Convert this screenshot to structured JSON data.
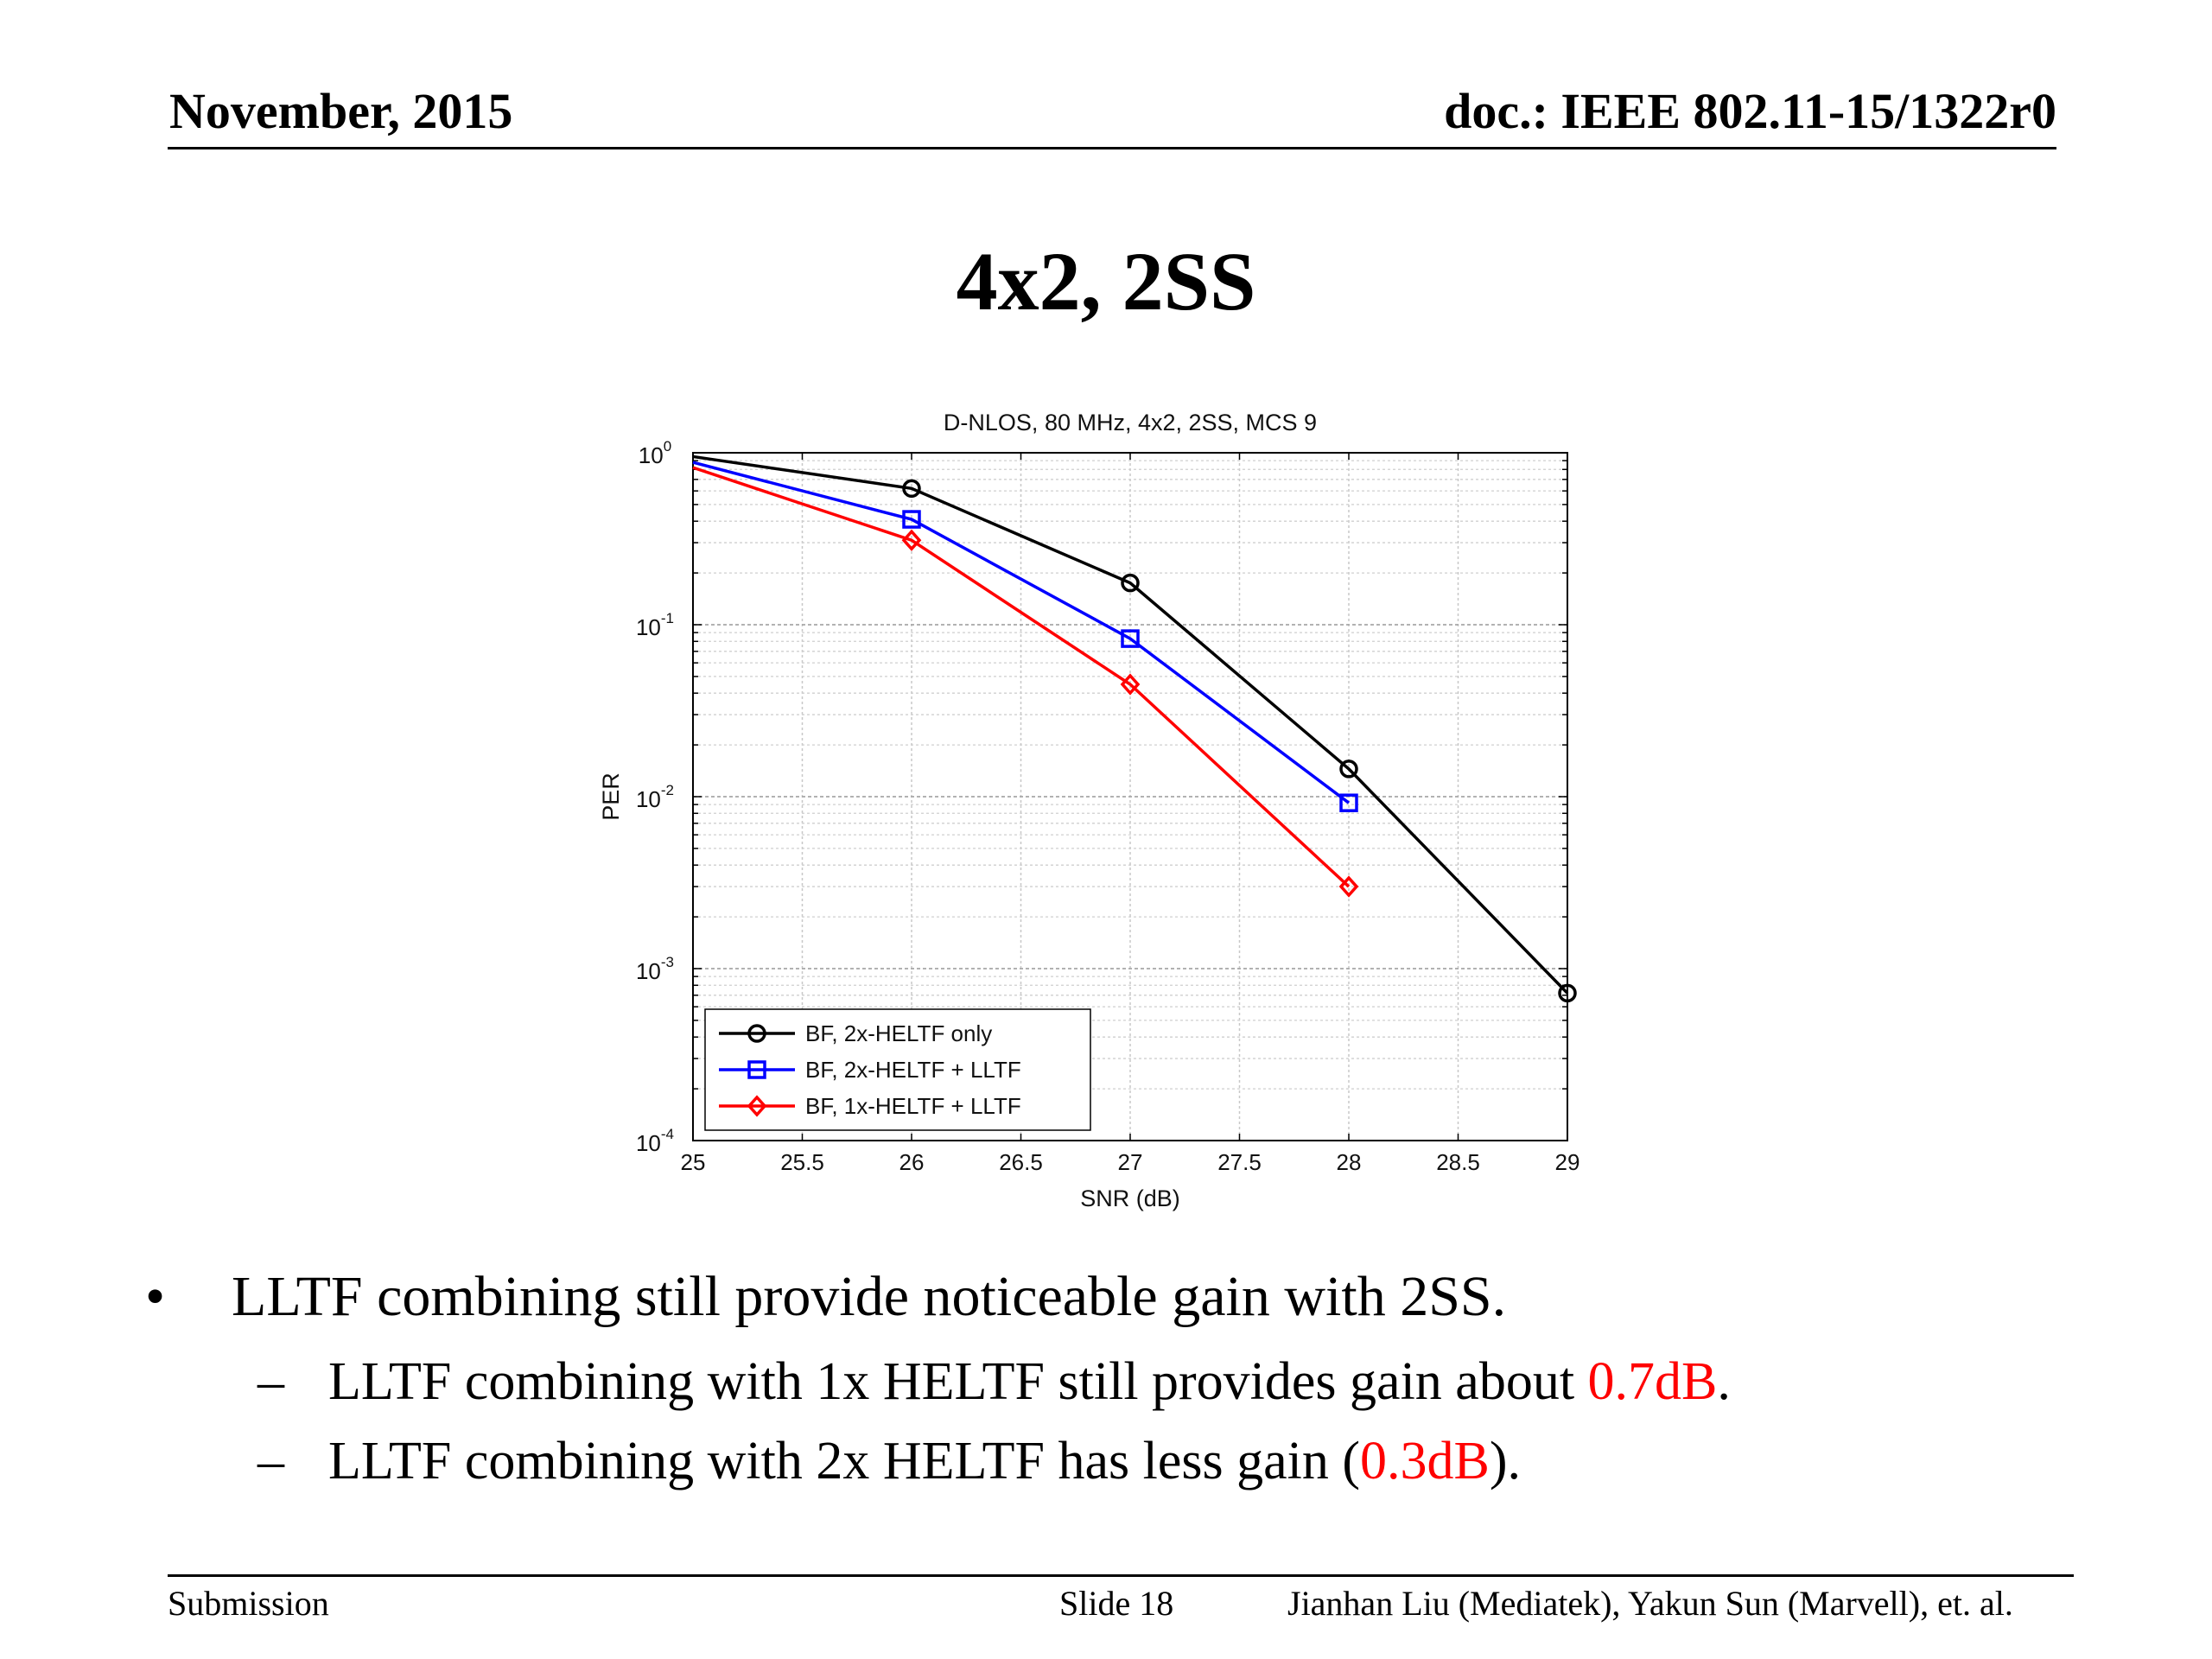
{
  "header": {
    "date": "November, 2015",
    "doc": "doc.: IEEE 802.11-15/1322r0"
  },
  "slide_title": "4x2, 2SS",
  "bullets": {
    "main": "LLTF combining still provide noticeable gain with 2SS.",
    "bullet_symbol": "•",
    "dash_symbol": "–",
    "sub1": {
      "before": "LLTF combining with 1x HELTF still provides gain about ",
      "highlight": "0.7dB",
      "after": "."
    },
    "sub2": {
      "before": "LLTF combining with 2x HELTF has less gain (",
      "highlight": "0.3dB",
      "after": ")."
    }
  },
  "footer": {
    "left": "Submission",
    "center": "Slide 18",
    "right": "Jianhan Liu (Mediatek), Yakun Sun (Marvell),  et. al."
  },
  "colors": {
    "highlight": "#ff0000"
  },
  "chart_data": {
    "type": "line",
    "title": "D-NLOS, 80 MHz, 4x2, 2SS, MCS 9",
    "xlabel": "SNR (dB)",
    "ylabel": "PER",
    "xlim": [
      25,
      29
    ],
    "ylim": [
      0.0001,
      1
    ],
    "yscale": "log",
    "xticks": [
      "25",
      "25.5",
      "26",
      "26.5",
      "27",
      "27.5",
      "28",
      "28.5",
      "29"
    ],
    "yticks": [
      {
        "base": "10",
        "exp": "0"
      },
      {
        "base": "10",
        "exp": "-1"
      },
      {
        "base": "10",
        "exp": "-2"
      },
      {
        "base": "10",
        "exp": "-3"
      },
      {
        "base": "10",
        "exp": "-4"
      }
    ],
    "grid": true,
    "legend": "bottom-left",
    "series": [
      {
        "name": "BF, 2x-HELTF only",
        "color": "#000000",
        "marker": "circle",
        "x": [
          25,
          26,
          27,
          28,
          29
        ],
        "y": [
          0.95,
          0.62,
          0.175,
          0.0145,
          0.00072
        ]
      },
      {
        "name": "BF, 2x-HELTF + LLTF",
        "color": "#0000ff",
        "marker": "square",
        "x": [
          25,
          26,
          27,
          28
        ],
        "y": [
          0.88,
          0.41,
          0.083,
          0.0092
        ]
      },
      {
        "name": "BF, 1x-HELTF + LLTF",
        "color": "#ff0000",
        "marker": "diamond",
        "x": [
          25,
          26,
          27,
          28
        ],
        "y": [
          0.82,
          0.31,
          0.045,
          0.003
        ]
      }
    ]
  }
}
